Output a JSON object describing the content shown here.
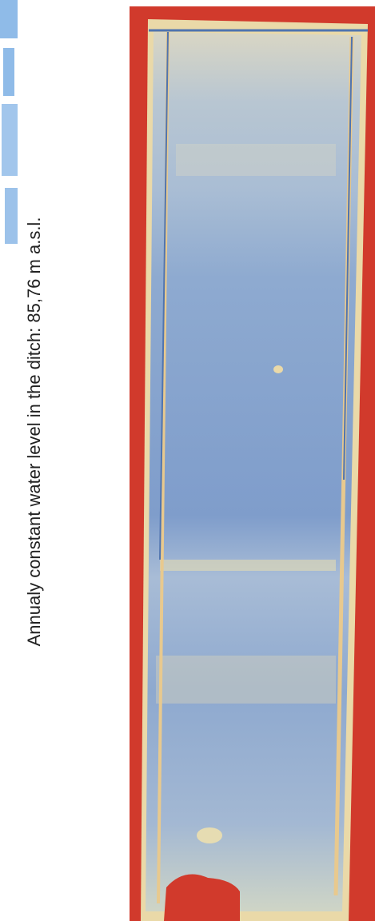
{
  "caption": "Annualy constant water level in the ditch: 85,76 m a.s.l."
}
